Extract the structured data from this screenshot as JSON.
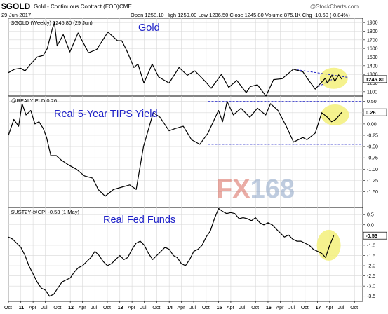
{
  "header": {
    "symbol": "$GOLD",
    "description": "Gold - Continuous Contract (EOD)",
    "exchange": "CME",
    "date": "29-Jun-2017",
    "ohlc_text": "Open 1258.10  High 1259.00  Low 1236.50  Close 1245.80  Volume 875.1K  Chg -10.60 (-0.84%)",
    "watermark": "@StockCharts.com"
  },
  "logo_text": "FX168",
  "colors": {
    "line": "#000000",
    "accent_blue": "#1f22c8",
    "highlight": "#f3f07a",
    "grid": "#d8d8d8",
    "logo_fx": "#d9685b",
    "logo_num": "#8aa3c4"
  },
  "x_axis": {
    "start": "2010-10-01",
    "end": "2017-12-01",
    "ticks": [
      {
        "date": "2010-10-01",
        "label": "Oct",
        "major": false
      },
      {
        "date": "2011-01-01",
        "label": "11",
        "major": true
      },
      {
        "date": "2011-04-01",
        "label": "Apr",
        "major": false
      },
      {
        "date": "2011-07-01",
        "label": "Jul",
        "major": false
      },
      {
        "date": "2011-10-01",
        "label": "Oct",
        "major": false
      },
      {
        "date": "2012-01-01",
        "label": "12",
        "major": true
      },
      {
        "date": "2012-04-01",
        "label": "Apr",
        "major": false
      },
      {
        "date": "2012-07-01",
        "label": "Jul",
        "major": false
      },
      {
        "date": "2012-10-01",
        "label": "Oct",
        "major": false
      },
      {
        "date": "2013-01-01",
        "label": "13",
        "major": true
      },
      {
        "date": "2013-04-01",
        "label": "Apr",
        "major": false
      },
      {
        "date": "2013-07-01",
        "label": "Jul",
        "major": false
      },
      {
        "date": "2013-10-01",
        "label": "Oct",
        "major": false
      },
      {
        "date": "2014-01-01",
        "label": "14",
        "major": true
      },
      {
        "date": "2014-04-01",
        "label": "Apr",
        "major": false
      },
      {
        "date": "2014-07-01",
        "label": "Jul",
        "major": false
      },
      {
        "date": "2014-10-01",
        "label": "Oct",
        "major": false
      },
      {
        "date": "2015-01-01",
        "label": "15",
        "major": true
      },
      {
        "date": "2015-04-01",
        "label": "Apr",
        "major": false
      },
      {
        "date": "2015-07-01",
        "label": "Jul",
        "major": false
      },
      {
        "date": "2015-10-01",
        "label": "Oct",
        "major": false
      },
      {
        "date": "2016-01-01",
        "label": "16",
        "major": true
      },
      {
        "date": "2016-04-01",
        "label": "Apr",
        "major": false
      },
      {
        "date": "2016-07-01",
        "label": "Jul",
        "major": false
      },
      {
        "date": "2016-10-01",
        "label": "Oct",
        "major": false
      },
      {
        "date": "2017-01-01",
        "label": "17",
        "major": true
      },
      {
        "date": "2017-04-01",
        "label": "Apr",
        "major": false
      },
      {
        "date": "2017-07-01",
        "label": "Jul",
        "major": false
      },
      {
        "date": "2017-10-01",
        "label": "Oct",
        "major": false
      }
    ]
  },
  "chart_data": [
    {
      "type": "line",
      "panel_label": "$GOLD (Weekly) 1245.80 (29 Jun)",
      "annotation": "Gold",
      "ylim": [
        1050,
        1950
      ],
      "yticks": [
        1100,
        1200,
        1300,
        1400,
        1500,
        1600,
        1700,
        1800,
        1900
      ],
      "last_value": "1245.80",
      "x": [
        "2010-10-01",
        "2010-11-15",
        "2011-01-01",
        "2011-02-01",
        "2011-03-15",
        "2011-05-01",
        "2011-06-15",
        "2011-07-15",
        "2011-08-20",
        "2011-09-06",
        "2011-09-26",
        "2011-11-10",
        "2011-12-29",
        "2012-02-28",
        "2012-05-15",
        "2012-07-15",
        "2012-10-05",
        "2012-12-15",
        "2013-01-15",
        "2013-02-20",
        "2013-04-15",
        "2013-05-15",
        "2013-06-28",
        "2013-08-28",
        "2013-10-15",
        "2013-12-31",
        "2014-03-15",
        "2014-05-15",
        "2014-07-10",
        "2014-09-30",
        "2014-11-07",
        "2015-01-22",
        "2015-03-17",
        "2015-05-15",
        "2015-07-24",
        "2015-08-24",
        "2015-10-15",
        "2015-12-17",
        "2016-02-11",
        "2016-04-15",
        "2016-07-06",
        "2016-09-15",
        "2016-10-15",
        "2016-12-15",
        "2017-02-27",
        "2017-03-15",
        "2017-04-17",
        "2017-05-09",
        "2017-06-06",
        "2017-06-29"
      ],
      "y": [
        1320,
        1360,
        1370,
        1340,
        1420,
        1500,
        1520,
        1600,
        1820,
        1900,
        1630,
        1760,
        1560,
        1780,
        1550,
        1590,
        1790,
        1690,
        1690,
        1580,
        1380,
        1420,
        1200,
        1420,
        1270,
        1200,
        1380,
        1290,
        1340,
        1210,
        1140,
        1300,
        1150,
        1230,
        1090,
        1160,
        1180,
        1050,
        1240,
        1250,
        1360,
        1330,
        1260,
        1130,
        1255,
        1200,
        1290,
        1220,
        1295,
        1245.8
      ],
      "resistance_line": {
        "from": [
          "2016-07-06",
          1360
        ],
        "to": [
          "2017-08-15",
          1265
        ]
      },
      "support_line": {
        "from": [
          "2016-12-15",
          1140
        ],
        "to": [
          "2017-04-17",
          1240
        ]
      },
      "highlight_center": [
        "2017-05-01",
        1255
      ]
    },
    {
      "type": "line",
      "panel_label": "@REALYIELD 0.26",
      "annotation": "Real 5-Year TIPS Yield",
      "ylim": [
        -1.85,
        0.62
      ],
      "yticks": [
        -1.5,
        -1.25,
        -1.0,
        -0.75,
        -0.5,
        -0.25,
        0.0,
        0.25,
        0.5
      ],
      "last_value": "0.26",
      "x": [
        "2010-10-01",
        "2010-11-10",
        "2010-12-15",
        "2011-01-10",
        "2011-02-08",
        "2011-03-15",
        "2011-04-15",
        "2011-05-15",
        "2011-06-15",
        "2011-07-10",
        "2011-08-10",
        "2011-09-20",
        "2011-10-27",
        "2011-12-15",
        "2012-02-15",
        "2012-04-15",
        "2012-06-15",
        "2012-07-25",
        "2012-09-15",
        "2012-11-15",
        "2013-01-15",
        "2013-03-15",
        "2013-05-02",
        "2013-06-25",
        "2013-09-05",
        "2013-10-25",
        "2013-12-31",
        "2014-02-15",
        "2014-04-15",
        "2014-06-15",
        "2014-08-15",
        "2014-10-15",
        "2014-12-31",
        "2015-01-30",
        "2015-03-05",
        "2015-04-20",
        "2015-06-15",
        "2015-08-20",
        "2015-10-15",
        "2015-12-15",
        "2016-01-20",
        "2016-03-15",
        "2016-05-15",
        "2016-07-08",
        "2016-09-15",
        "2016-10-15",
        "2016-12-15",
        "2017-02-01",
        "2017-03-15",
        "2017-04-15",
        "2017-05-15",
        "2017-06-29"
      ],
      "y": [
        -0.25,
        0.1,
        -0.05,
        0.45,
        0.2,
        0.3,
        0.0,
        0.05,
        -0.1,
        -0.3,
        -0.7,
        -0.7,
        -0.8,
        -0.9,
        -1.0,
        -1.15,
        -1.2,
        -1.45,
        -1.6,
        -1.45,
        -1.4,
        -1.35,
        -1.45,
        -0.5,
        0.25,
        0.15,
        -0.15,
        -0.1,
        -0.05,
        -0.35,
        -0.45,
        -0.2,
        0.3,
        0.05,
        0.5,
        0.2,
        0.35,
        0.15,
        0.35,
        0.2,
        0.45,
        0.3,
        -0.05,
        -0.4,
        -0.3,
        -0.35,
        -0.2,
        0.25,
        0.15,
        0.05,
        0.1,
        0.26
      ],
      "upper_band": 0.5,
      "lower_band": -0.45,
      "band_from": "2014-10-15",
      "highlight_center": [
        "2017-05-10",
        0.2
      ]
    },
    {
      "type": "line",
      "panel_label": "$UST2Y-@CPI -0.53 (1 May)",
      "annotation": "Real Fed Funds",
      "ylim": [
        -3.75,
        0.85
      ],
      "yticks": [
        -3.5,
        -3.0,
        -2.5,
        -2.0,
        -1.5,
        -1.0,
        -0.5,
        0.0,
        0.5
      ],
      "last_value": "-0.53",
      "x": [
        "2010-10-01",
        "2010-11-01",
        "2010-12-01",
        "2011-01-01",
        "2011-02-01",
        "2011-03-01",
        "2011-04-01",
        "2011-05-01",
        "2011-06-01",
        "2011-07-01",
        "2011-08-01",
        "2011-09-01",
        "2011-10-01",
        "2011-11-01",
        "2011-12-01",
        "2012-01-01",
        "2012-02-01",
        "2012-03-01",
        "2012-04-01",
        "2012-05-01",
        "2012-06-01",
        "2012-07-01",
        "2012-08-01",
        "2012-09-01",
        "2012-10-01",
        "2012-11-01",
        "2012-12-01",
        "2013-01-01",
        "2013-02-01",
        "2013-03-01",
        "2013-04-01",
        "2013-05-01",
        "2013-06-01",
        "2013-07-01",
        "2013-08-01",
        "2013-09-01",
        "2013-10-01",
        "2013-11-01",
        "2013-12-01",
        "2014-01-01",
        "2014-02-01",
        "2014-03-01",
        "2014-04-01",
        "2014-05-01",
        "2014-06-01",
        "2014-07-01",
        "2014-08-01",
        "2014-09-01",
        "2014-10-01",
        "2014-11-01",
        "2014-12-01",
        "2015-01-01",
        "2015-02-01",
        "2015-03-01",
        "2015-04-01",
        "2015-05-01",
        "2015-06-01",
        "2015-07-01",
        "2015-08-01",
        "2015-09-01",
        "2015-10-01",
        "2015-11-01",
        "2015-12-01",
        "2016-01-01",
        "2016-02-01",
        "2016-03-01",
        "2016-04-01",
        "2016-05-01",
        "2016-06-01",
        "2016-07-01",
        "2016-08-01",
        "2016-09-01",
        "2016-10-01",
        "2016-11-01",
        "2016-12-01",
        "2017-01-01",
        "2017-02-01",
        "2017-03-01",
        "2017-04-01",
        "2017-05-01"
      ],
      "y": [
        -0.6,
        -0.7,
        -0.9,
        -1.1,
        -1.5,
        -2.0,
        -2.4,
        -2.8,
        -3.1,
        -3.2,
        -3.5,
        -3.4,
        -3.1,
        -2.8,
        -2.7,
        -2.6,
        -2.3,
        -2.1,
        -2.0,
        -1.8,
        -1.6,
        -1.3,
        -1.5,
        -1.8,
        -2.0,
        -1.9,
        -1.7,
        -1.5,
        -1.7,
        -1.6,
        -1.2,
        -0.9,
        -0.8,
        -1.0,
        -1.4,
        -1.7,
        -1.5,
        -1.3,
        -1.1,
        -1.2,
        -1.5,
        -1.6,
        -1.9,
        -2.0,
        -1.7,
        -1.3,
        -1.2,
        -1.0,
        -0.6,
        -0.3,
        0.3,
        0.8,
        0.65,
        0.55,
        0.6,
        0.55,
        0.3,
        0.35,
        0.3,
        0.2,
        0.35,
        0.1,
        0.0,
        0.1,
        0.0,
        -0.2,
        -0.4,
        -0.6,
        -0.5,
        -0.7,
        -0.8,
        -0.8,
        -0.9,
        -1.0,
        -1.2,
        -1.3,
        -1.4,
        -1.6,
        -1.0,
        -0.53
      ],
      "highlight_center": [
        "2017-03-25",
        -1.0
      ]
    }
  ]
}
